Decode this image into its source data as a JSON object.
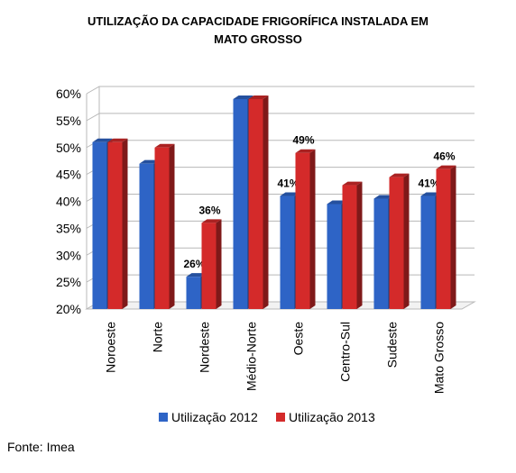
{
  "chart_data": {
    "type": "bar",
    "title_lines": [
      "UTILIZAÇÃO DA CAPACIDADE FRIGORÍFICA INSTALADA EM",
      "MATO GROSSO"
    ],
    "categories": [
      "Noroeste",
      "Norte",
      "Nordeste",
      "Médio-Norte",
      "Oeste",
      "Centro-Sul",
      "Sudeste",
      "Mato Grosso"
    ],
    "series": [
      {
        "name": "Utilização 2012",
        "color": "#2E64C6",
        "values": [
          51,
          47,
          26,
          59,
          41,
          39.5,
          40.5,
          41
        ],
        "labels": [
          null,
          null,
          "26%",
          null,
          "41%",
          null,
          null,
          "41%"
        ]
      },
      {
        "name": "Utilização 2013",
        "color": "#D42A2A",
        "values": [
          51,
          50,
          36,
          59,
          49,
          43,
          44.5,
          46
        ],
        "labels": [
          null,
          null,
          "36%",
          null,
          "49%",
          null,
          null,
          "46%"
        ]
      }
    ],
    "ylim": [
      20,
      60
    ],
    "yticks": [
      "20%",
      "25%",
      "30%",
      "35%",
      "40%",
      "45%",
      "50%",
      "55%",
      "60%"
    ],
    "xlabel": "",
    "ylabel": "",
    "grid": true,
    "legend_position": "bottom"
  },
  "source": "Fonte: Imea"
}
